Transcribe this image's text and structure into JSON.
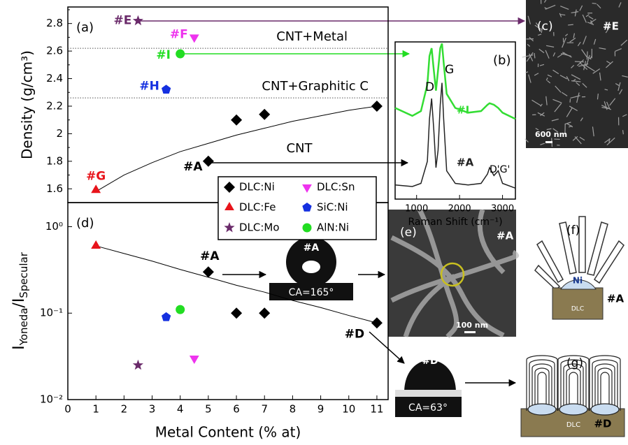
{
  "chart_data": [
    {
      "type": "scatter",
      "panel": "(a)",
      "ylabel": "Density (g/cm³)",
      "xlim": [
        0,
        11.4
      ],
      "ylim": [
        1.5,
        2.92
      ],
      "yticks": [
        1.6,
        1.8,
        2.0,
        2.2,
        2.4,
        2.6,
        2.8
      ],
      "reference_lines": [
        {
          "value": 2.62,
          "label": "CNT+Metal"
        },
        {
          "value": 2.26,
          "label": "CNT+Graphitic C"
        }
      ],
      "annotations": [
        "CNT"
      ],
      "fit": {
        "x": [
          1,
          2,
          3,
          4,
          5,
          6,
          7,
          8,
          9,
          10,
          11
        ],
        "values": [
          1.58,
          1.7,
          1.79,
          1.87,
          1.93,
          1.99,
          2.04,
          2.09,
          2.13,
          2.17,
          2.2
        ]
      },
      "series": [
        {
          "color": "#000000",
          "marker": "diamond",
          "x": [
            5,
            6,
            7,
            11
          ],
          "values": [
            1.8,
            2.1,
            2.14,
            2.2
          ],
          "labels": [
            "#A",
            null,
            null,
            null
          ]
        },
        {
          "color": "#e8141b",
          "marker": "triangle-up",
          "x": [
            1
          ],
          "values": [
            1.59
          ],
          "labels": [
            "#G"
          ]
        },
        {
          "color": "#6a2a6a",
          "marker": "star",
          "x": [
            2.5
          ],
          "values": [
            2.82
          ],
          "labels": [
            "#E"
          ]
        },
        {
          "color": "#ee33ee",
          "marker": "triangle-down",
          "x": [
            4.5
          ],
          "values": [
            2.7
          ],
          "labels": [
            "#F"
          ]
        },
        {
          "color": "#1530e0",
          "marker": "pentagon",
          "x": [
            3.5
          ],
          "values": [
            2.32
          ],
          "labels": [
            "#H"
          ]
        },
        {
          "color": "#22dd22",
          "marker": "circle",
          "x": [
            4
          ],
          "values": [
            2.58
          ],
          "labels": [
            "#I"
          ]
        }
      ]
    },
    {
      "type": "line",
      "panel": "(b)",
      "xlabel": "Raman Shift (cm⁻¹)",
      "xlim": [
        500,
        3300
      ],
      "xticks": [
        1000,
        2000,
        3000
      ],
      "ylim": [
        0,
        1
      ],
      "annotations": [
        "D",
        "G",
        "D'G'"
      ],
      "x": [
        500,
        900,
        1100,
        1250,
        1300,
        1350,
        1400,
        1450,
        1500,
        1550,
        1590,
        1630,
        1700,
        1900,
        2200,
        2500,
        2650,
        2700,
        2800,
        2900,
        3000,
        3300
      ],
      "series": [
        {
          "name": "#I",
          "color": "#33dd33",
          "values": [
            0.58,
            0.53,
            0.56,
            0.73,
            0.91,
            0.96,
            0.82,
            0.69,
            0.82,
            0.96,
            0.99,
            0.87,
            0.67,
            0.58,
            0.55,
            0.56,
            0.6,
            0.61,
            0.6,
            0.58,
            0.55,
            0.51
          ]
        },
        {
          "name": "#A",
          "color": "#222222",
          "values": [
            0.09,
            0.08,
            0.1,
            0.24,
            0.51,
            0.64,
            0.44,
            0.2,
            0.31,
            0.6,
            0.74,
            0.51,
            0.18,
            0.1,
            0.09,
            0.1,
            0.16,
            0.2,
            0.15,
            0.18,
            0.1,
            0.07
          ]
        }
      ]
    },
    {
      "type": "scatter",
      "panel": "(d)",
      "log_y": true,
      "ylabel": [
        "I",
        "Yoneda",
        "/I",
        "Specular"
      ],
      "xlabel": "Metal Content (% at)",
      "xlim": [
        0,
        11.4
      ],
      "xticks": [
        0,
        1,
        2,
        3,
        4,
        5,
        6,
        7,
        8,
        9,
        10,
        11
      ],
      "ylim": [
        0.01,
        1.9
      ],
      "yticks": [
        {
          "value": 0.01,
          "label": "10⁻²"
        },
        {
          "value": 0.1,
          "label": "10⁻¹"
        },
        {
          "value": 1,
          "label": "10⁰"
        }
      ],
      "legend": "upper center",
      "fit": {
        "x": [
          1,
          2,
          3,
          4,
          5,
          6,
          7,
          8,
          9,
          10,
          11
        ],
        "values": [
          0.6,
          0.49,
          0.4,
          0.32,
          0.26,
          0.21,
          0.175,
          0.14,
          0.116,
          0.094,
          0.077
        ]
      },
      "series": [
        {
          "name": "DLC:Ni",
          "color": "#000000",
          "marker": "diamond",
          "x": [
            5,
            6,
            7,
            11
          ],
          "values": [
            0.3,
            0.1,
            0.1,
            0.077
          ],
          "labels": [
            "#A",
            null,
            null,
            "#D"
          ]
        },
        {
          "name": "DLC:Fe",
          "color": "#e8141b",
          "marker": "triangle-up",
          "x": [
            1
          ],
          "values": [
            0.6
          ],
          "labels": [
            null
          ]
        },
        {
          "name": "DLC:Mo",
          "color": "#6a2a6a",
          "marker": "star",
          "x": [
            2.5
          ],
          "values": [
            0.025
          ],
          "labels": [
            null
          ]
        },
        {
          "name": "DLC:Sn",
          "color": "#ee33ee",
          "marker": "triangle-down",
          "x": [
            4.5
          ],
          "values": [
            0.03
          ],
          "labels": [
            null
          ]
        },
        {
          "name": "SiC:Ni",
          "color": "#1530e0",
          "marker": "pentagon",
          "x": [
            3.5
          ],
          "values": [
            0.09
          ],
          "labels": [
            null
          ]
        },
        {
          "name": "AlN:Ni",
          "color": "#22dd22",
          "marker": "circle",
          "x": [
            4
          ],
          "values": [
            0.11
          ],
          "labels": [
            null
          ]
        }
      ]
    }
  ],
  "panels": {
    "c": {
      "label": "(c)",
      "tag": "#E",
      "scale": "600 nm"
    },
    "e": {
      "label": "(e)",
      "tag": "#A",
      "scale": "100 nm"
    },
    "f": {
      "label": "(f)",
      "metal": "Ni",
      "substrate": "DLC",
      "tag": "#A"
    },
    "g": {
      "label": "(g)",
      "substrate": "DLC",
      "tag": "#D"
    },
    "drops": [
      {
        "tag": "#A",
        "angle": "CA=165°"
      },
      {
        "tag": "#D",
        "angle": "CA=63°"
      }
    ]
  }
}
